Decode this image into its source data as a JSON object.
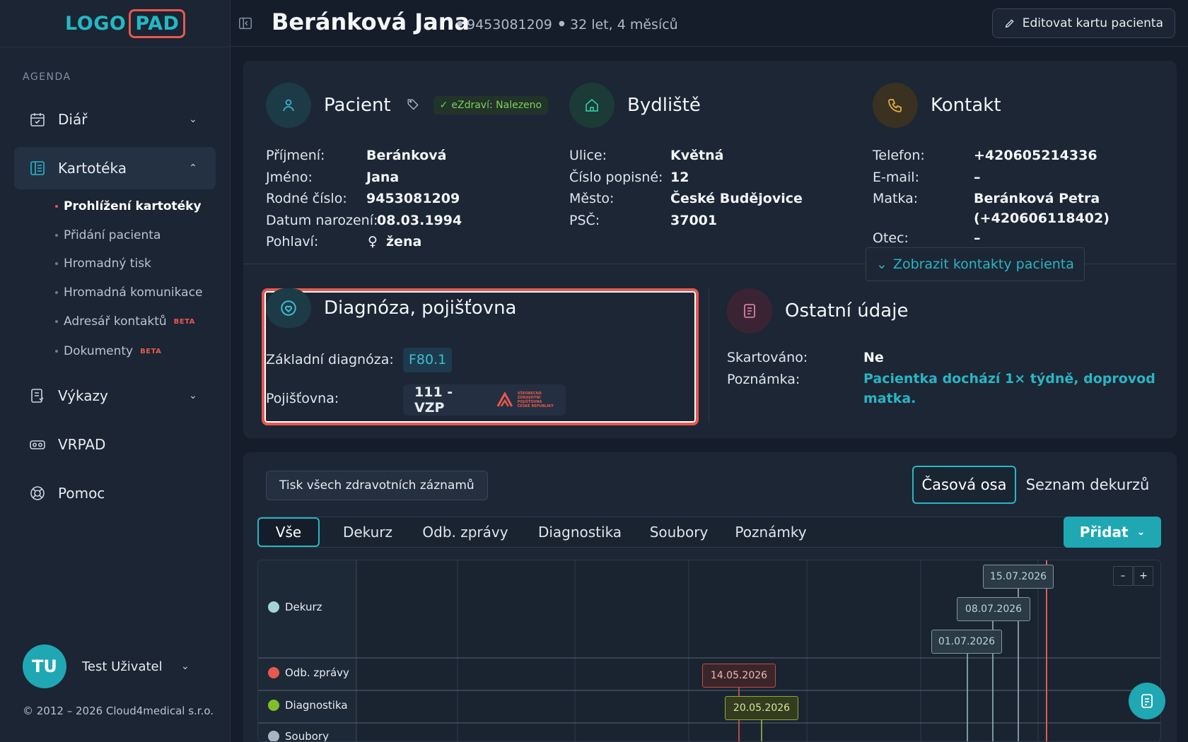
{
  "brand": {
    "logo_left": "LOGO",
    "logo_right": "PAD"
  },
  "sidebar": {
    "section": "AGENDA",
    "items": [
      {
        "label": "Diář",
        "icon": "calendar-icon"
      },
      {
        "label": "Kartotéka",
        "icon": "card-index-icon"
      },
      {
        "label": "Výkazy",
        "icon": "report-icon"
      },
      {
        "label": "VRPAD",
        "icon": "vr-headset-icon"
      },
      {
        "label": "Pomoc",
        "icon": "lifebuoy-icon"
      }
    ],
    "sub_items": [
      {
        "label": "Prohlížení kartotéky"
      },
      {
        "label": "Přidání pacienta"
      },
      {
        "label": "Hromadný tisk"
      },
      {
        "label": "Hromadná komunikace"
      },
      {
        "label": "Adresář kontaktů",
        "badge": "BETA"
      },
      {
        "label": "Dokumenty",
        "badge": "BETA"
      }
    ],
    "user": {
      "initials": "TU",
      "name": "Test Uživatel"
    },
    "copyright": "© 2012 – 2026 Cloud4medical s.r.o."
  },
  "header": {
    "name": "Beránková Jana",
    "birth_number": "9453081209",
    "age": "32 let, 4 měsíců",
    "edit_label": "Editovat kartu pacienta"
  },
  "patient": {
    "title": "Pacient",
    "ezdravi": "eZdraví: Nalezeno",
    "rows": [
      {
        "k": "Příjmení:",
        "v": "Beránková"
      },
      {
        "k": "Jméno:",
        "v": "Jana"
      },
      {
        "k": "Rodné číslo:",
        "v": "9453081209"
      },
      {
        "k": "Datum narození:",
        "v": "08.03.1994"
      },
      {
        "k": "Pohlaví:",
        "v": "žena"
      }
    ]
  },
  "address": {
    "title": "Bydliště",
    "rows": [
      {
        "k": "Ulice:",
        "v": "Květná"
      },
      {
        "k": "Číslo popisné:",
        "v": "12"
      },
      {
        "k": "Město:",
        "v": "České Budějovice"
      },
      {
        "k": "PSČ:",
        "v": "37001"
      }
    ]
  },
  "contact": {
    "title": "Kontakt",
    "rows": [
      {
        "k": "Telefon:",
        "v": "+420605214336"
      },
      {
        "k": "E-mail:",
        "v": "–"
      },
      {
        "k": "Matka:",
        "v": "Beránková Petra"
      },
      {
        "k": "",
        "v": "(+420606118402)"
      },
      {
        "k": "Otec:",
        "v": "–"
      }
    ],
    "show_more": "Zobrazit kontakty pacienta"
  },
  "diagnosis": {
    "title": "Diagnóza, pojišťovna",
    "dx_label": "Základní diagnóza:",
    "dx_code": "F80.1",
    "ins_label": "Pojišťovna:",
    "ins_value": "111 - VZP",
    "ins_logo_text": [
      "VŠEOBECNÁ",
      "ZDRAVOTNÍ POJIŠŤOVNA",
      "ČESKÉ REPUBLIKY"
    ]
  },
  "other": {
    "title": "Ostatní údaje",
    "rows": [
      {
        "k": "Skartováno:",
        "v": "Ne"
      },
      {
        "k": "Poznámka:",
        "v": "Pacientka dochází 1× týdně, doprovod matka."
      }
    ]
  },
  "records": {
    "print_all": "Tisk všech zdravotních záznamů",
    "view_timeline": "Časová osa",
    "view_list": "Seznam dekurzů",
    "tabs": [
      "Vše",
      "Dekurz",
      "Odb. zprávy",
      "Diagnostika",
      "Soubory",
      "Poznámky"
    ],
    "add": "Přidat"
  },
  "timeline": {
    "lanes": [
      {
        "label": "Dekurz",
        "color": "#a7d3d6"
      },
      {
        "label": "Odb. zprávy",
        "color": "#e6594f"
      },
      {
        "label": "Diagnostika",
        "color": "#7fbf2a"
      },
      {
        "label": "Soubory",
        "color": "#aab4c0"
      }
    ],
    "events": [
      {
        "lane": "Dekurz",
        "date": "15.07.2026"
      },
      {
        "lane": "Dekurz",
        "date": "08.07.2026"
      },
      {
        "lane": "Dekurz",
        "date": "01.07.2026"
      },
      {
        "lane": "Odb. zprávy",
        "date": "14.05.2026"
      },
      {
        "lane": "Diagnostika",
        "date": "20.05.2026"
      }
    ],
    "zoom_out": "–",
    "zoom_in": "+"
  },
  "colors": {
    "accent": "#25b8c4",
    "danger": "#e6594f",
    "green": "#7fce5a"
  }
}
